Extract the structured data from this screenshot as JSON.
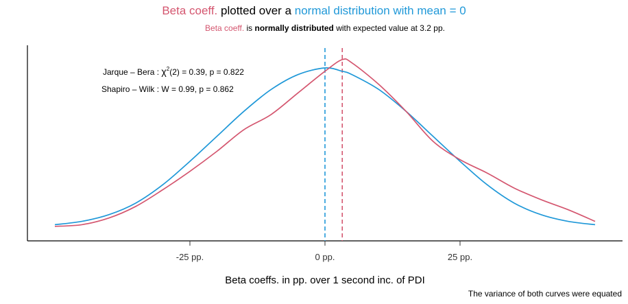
{
  "colors": {
    "beta": "#d4566f",
    "normal": "#1f98d8",
    "axis": "#000000"
  },
  "title": {
    "part1": "Beta coeff.",
    "part2": " plotted over a ",
    "part3": "normal distribution with mean = 0"
  },
  "subtitle": {
    "part1": "Beta coeff.",
    "part2": " is ",
    "part3": "normally distributed",
    "part4": " with expected value at 3.2 pp."
  },
  "annotations": {
    "jarque_prefix": "Jarque – Bera : ",
    "chi_symbol": "χ",
    "chi_sup": "2",
    "jarque_rest": "(2) = 0.39,  p = 0.822",
    "shapiro": "Shapiro – Wilk : W = 0.99,  p = 0.862"
  },
  "caption": "The variance of both curves were equated",
  "chart_data": {
    "type": "line",
    "xlabel": "Beta coeffs. in pp. over 1 second inc. of PDI",
    "ylabel": "",
    "xlim": [
      -50,
      50
    ],
    "ylim": [
      0,
      1
    ],
    "x_ticks": [
      {
        "value": -25,
        "label": "-25 pp."
      },
      {
        "value": 0,
        "label": "0 pp."
      },
      {
        "value": 25,
        "label": "25 pp."
      }
    ],
    "vlines": [
      {
        "series": "Beta coeff.",
        "value": 0,
        "style": "dashed",
        "color": "#1f98d8"
      },
      {
        "series": "Beta coeff.",
        "value": 3.2,
        "style": "dashed",
        "color": "#d4566f"
      }
    ],
    "series": [
      {
        "color": "#1f98d8",
        "x": [
          -50,
          -45,
          -40,
          -35,
          -30,
          -25,
          -20,
          -15,
          -10,
          -5,
          0,
          3.2,
          5,
          10,
          15,
          20,
          25,
          30,
          35,
          40,
          45,
          50
        ],
        "y": [
          0.06,
          0.08,
          0.12,
          0.19,
          0.3,
          0.44,
          0.59,
          0.74,
          0.87,
          0.96,
          1.0,
          0.98,
          0.96,
          0.87,
          0.74,
          0.59,
          0.44,
          0.3,
          0.19,
          0.12,
          0.08,
          0.06
        ]
      },
      {
        "color": "#d4566f",
        "x": [
          -50,
          -45,
          -40,
          -35,
          -30,
          -25,
          -20,
          -15,
          -10,
          -5,
          0,
          3.2,
          5,
          10,
          15,
          20,
          25,
          30,
          35,
          40,
          45,
          50
        ],
        "y": [
          0.05,
          0.06,
          0.1,
          0.17,
          0.27,
          0.38,
          0.5,
          0.63,
          0.72,
          0.85,
          0.98,
          1.05,
          1.03,
          0.9,
          0.74,
          0.56,
          0.45,
          0.37,
          0.28,
          0.21,
          0.15,
          0.08
        ]
      }
    ]
  }
}
